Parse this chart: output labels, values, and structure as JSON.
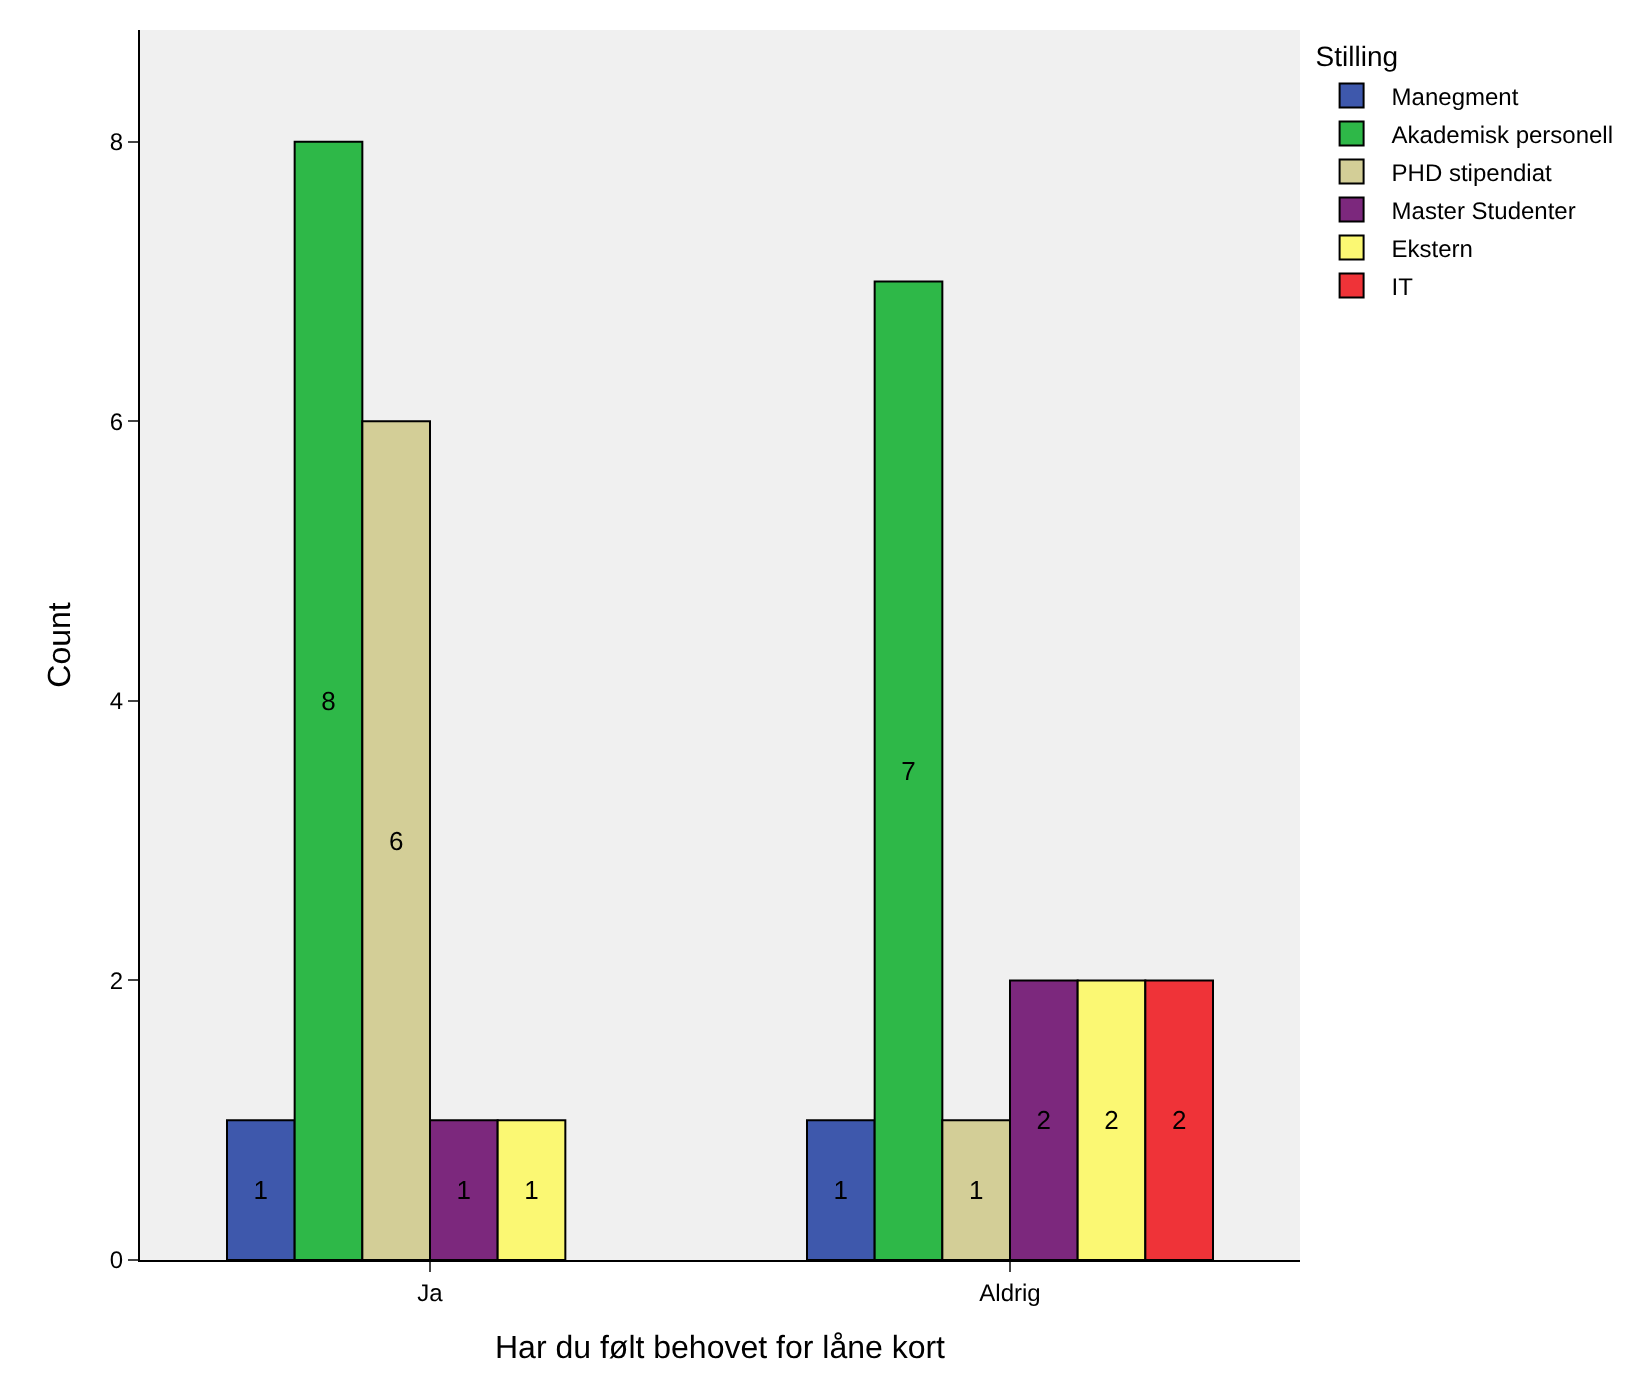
{
  "chart_data": {
    "type": "bar",
    "xlabel": "Har du følt behovet for låne kort",
    "ylabel": "Count",
    "legend_title": "Stilling",
    "categories": [
      "Ja",
      "Aldrig"
    ],
    "series": [
      {
        "name": "Manegment",
        "color": "#3e58ac",
        "values": [
          1,
          1
        ]
      },
      {
        "name": "Akademisk personell",
        "color": "#2eb848",
        "values": [
          8,
          7
        ]
      },
      {
        "name": "PHD stipendiat",
        "color": "#d3ce97",
        "values": [
          6,
          1
        ]
      },
      {
        "name": "Master Studenter",
        "color": "#7c287d",
        "values": [
          1,
          2
        ]
      },
      {
        "name": "Ekstern",
        "color": "#fbf873",
        "values": [
          1,
          2
        ]
      },
      {
        "name": "IT",
        "color": "#ef3338",
        "values": [
          null,
          2
        ]
      }
    ],
    "ylim": [
      0,
      8.8
    ],
    "yticks": [
      0,
      2,
      4,
      6,
      8
    ],
    "data_labels": true,
    "grid": false,
    "legend": "top right"
  }
}
